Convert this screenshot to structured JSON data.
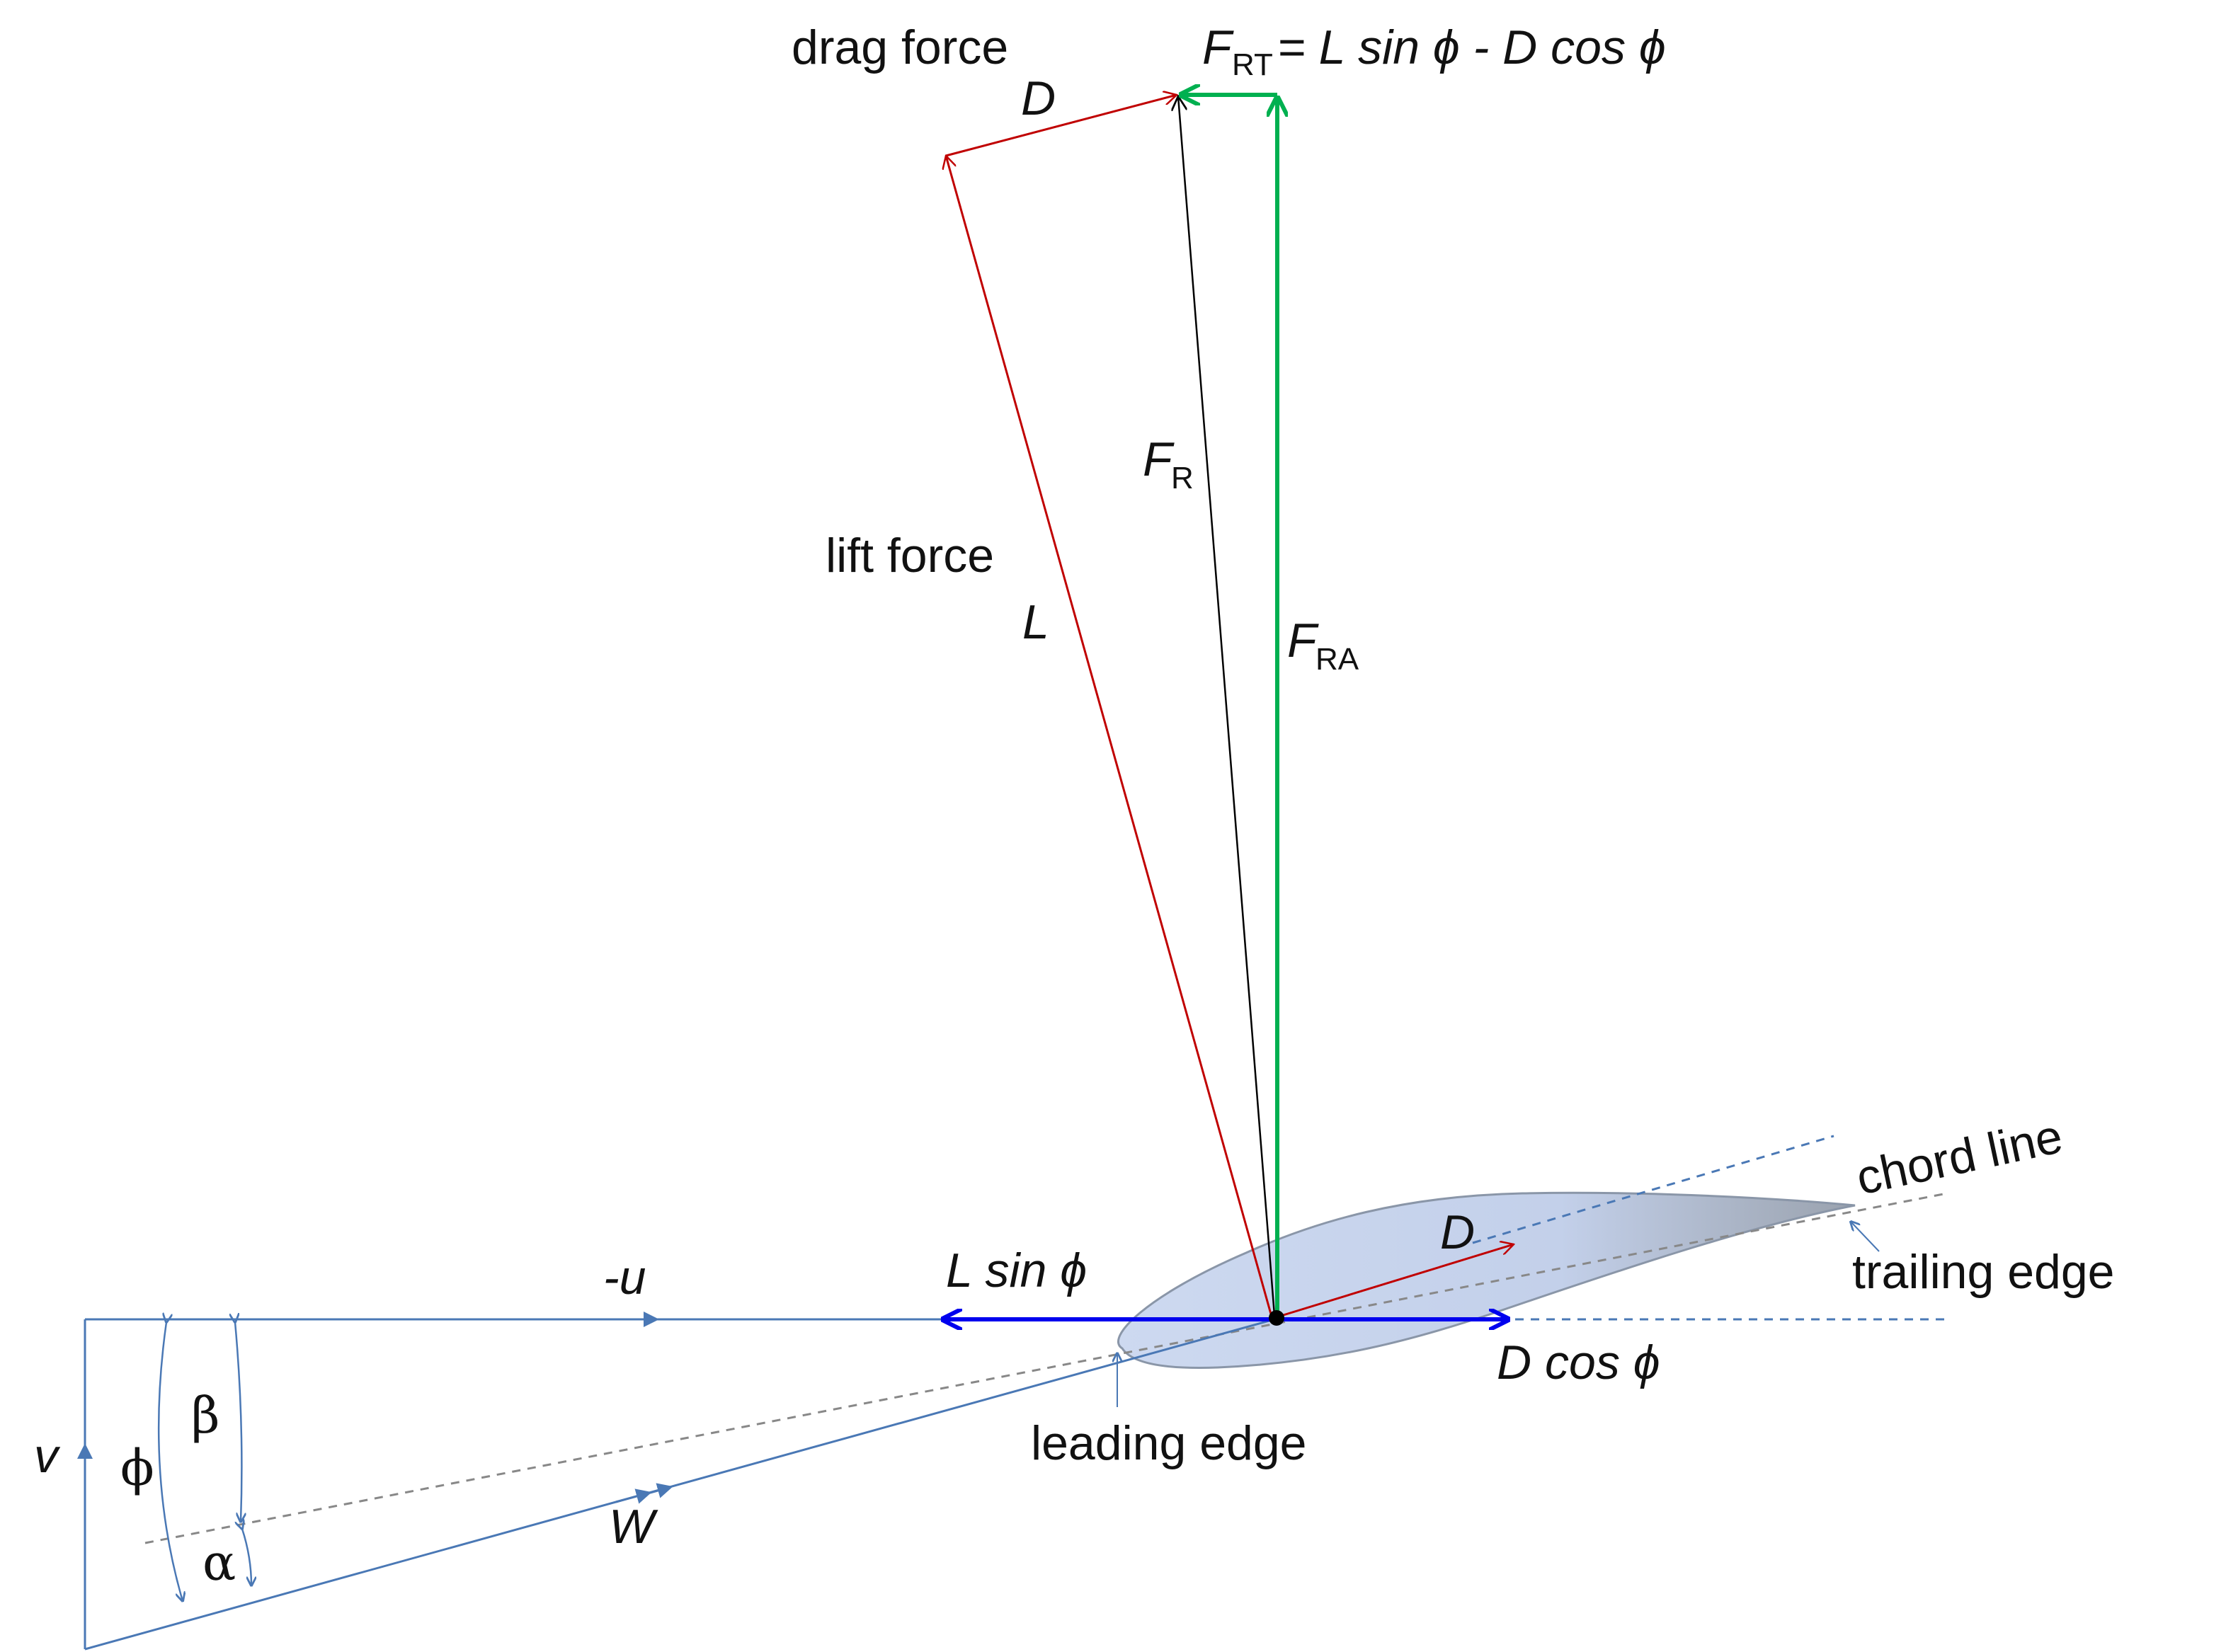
{
  "labels": {
    "drag_force": "drag force",
    "lift_force": "lift force",
    "D": "D",
    "L": "L",
    "F": "F",
    "sub_RT": "RT",
    "sub_R": "R",
    "sub_RA": "RA",
    "frt_eq": "= L sin ϕ - D cos ϕ",
    "l_sin_phi": "L sin ϕ",
    "d_cos_phi": "D cos ϕ",
    "minus_u": "-u",
    "v": "v",
    "W": "W",
    "phi": "ϕ",
    "beta": "β",
    "alpha": "α",
    "chord_line": "chord line",
    "trailing_edge": "trailing edge",
    "leading_edge": "leading edge"
  },
  "colors": {
    "lift_drag": "#c00000",
    "resultant": "#000000",
    "axial_tangential": "#00b050",
    "horizontal_components": "#0000ee",
    "velocity_lines": "#4a78b5",
    "chord_dashed": "#888888",
    "airfoil_fill": "#c9d8ef",
    "airfoil_stroke": "#8a96a8"
  }
}
